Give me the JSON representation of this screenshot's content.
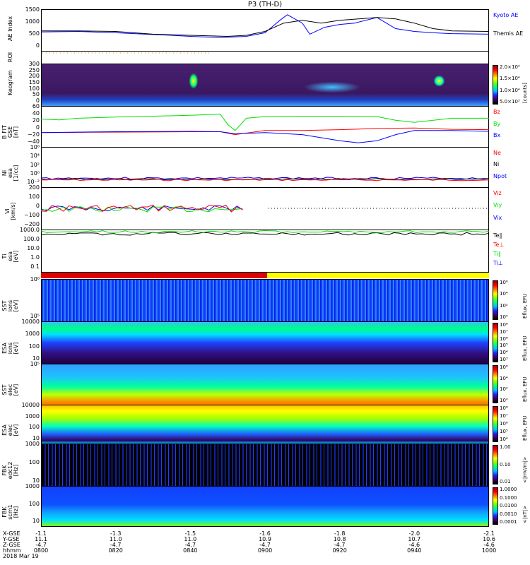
{
  "title": "P3 (TH-D)",
  "date": "2018 Mar 19",
  "colors": {
    "red": "#ff0000",
    "green": "#00e000",
    "blue": "#0000ff",
    "black": "#000000",
    "yellow": "#ffff00"
  },
  "chart_data": [
    {
      "type": "line",
      "id": "ae",
      "ylabel": "AE Index",
      "ylim": [
        0,
        1500
      ],
      "yticks": [
        "1500",
        "1000",
        "500",
        "0"
      ],
      "series": [
        {
          "name": "Kyoto AE",
          "color": "#0000ff",
          "x": [
            0,
            10,
            20,
            28,
            35,
            40,
            48,
            55,
            60,
            64,
            66,
            70,
            72,
            76,
            80,
            84,
            90,
            95,
            100,
            105,
            110,
            120
          ],
          "y": [
            680,
            700,
            650,
            600,
            560,
            520,
            480,
            520,
            650,
            1100,
            1300,
            1000,
            600,
            850,
            950,
            1000,
            1200,
            800,
            700,
            650,
            620,
            600
          ]
        },
        {
          "name": "Themis AE",
          "color": "#000000",
          "x": [
            0,
            10,
            20,
            30,
            40,
            50,
            55,
            60,
            65,
            70,
            75,
            80,
            85,
            90,
            95,
            100,
            105,
            110,
            120
          ],
          "y": [
            720,
            720,
            700,
            600,
            560,
            520,
            560,
            700,
            1000,
            1100,
            1000,
            1100,
            1150,
            1200,
            1150,
            1000,
            800,
            720,
            700
          ]
        }
      ]
    },
    {
      "type": "line",
      "id": "roi",
      "ylabel": "ROI",
      "yticks": []
    },
    {
      "type": "heatmap",
      "id": "keo",
      "ylabel": "Keogram",
      "yticks": [
        "300",
        "250",
        "200",
        "150",
        "100",
        "50",
        "0"
      ],
      "colorbar": {
        "label": "[counts]",
        "ticks": [
          "2.0×10⁴",
          "1.5×10⁴",
          "1.0×10⁴",
          "5.0×10³"
        ]
      }
    },
    {
      "type": "line",
      "id": "b",
      "ylabel": "B FIT\nGSE\n[nT]",
      "ylim": [
        -40,
        60
      ],
      "yticks": [
        "60",
        "40",
        "20",
        "0",
        "−20",
        "−40"
      ],
      "series": [
        {
          "name": "Bz",
          "color": "#ff0000",
          "x": [
            0,
            20,
            40,
            48,
            52,
            60,
            70,
            80,
            90,
            100,
            110,
            120
          ],
          "y": [
            -5,
            -4,
            -3,
            -3,
            -10,
            0,
            0,
            2,
            5,
            6,
            3,
            2
          ]
        },
        {
          "name": "By",
          "color": "#00e000",
          "x": [
            0,
            5,
            10,
            20,
            30,
            40,
            48,
            50,
            52,
            55,
            60,
            70,
            80,
            90,
            95,
            100,
            110,
            120
          ],
          "y": [
            28,
            26,
            30,
            33,
            35,
            37,
            40,
            15,
            0,
            30,
            34,
            35,
            35,
            34,
            25,
            20,
            30,
            30
          ]
        },
        {
          "name": "Bx",
          "color": "#0000ff",
          "x": [
            0,
            20,
            40,
            48,
            52,
            60,
            70,
            80,
            85,
            90,
            95,
            100,
            110,
            120
          ],
          "y": [
            -5,
            -3,
            -2,
            -3,
            -8,
            -5,
            -10,
            -25,
            -30,
            -25,
            -10,
            0,
            0,
            -2
          ]
        }
      ]
    },
    {
      "type": "line",
      "id": "n",
      "ylabel": "Ni\nesa\n[1/cc]",
      "yticks": [
        "10⁶",
        "10⁴",
        "10²",
        "10⁰",
        "10⁻²"
      ],
      "series": [
        {
          "name": "Ne",
          "color": "#ff0000"
        },
        {
          "name": "Ni",
          "color": "#000000"
        },
        {
          "name": "Npot",
          "color": "#0000ff"
        }
      ]
    },
    {
      "type": "line",
      "id": "v",
      "ylabel": "Vi\n[km/s]",
      "ylim": [
        -250,
        250
      ],
      "yticks": [
        "200",
        "100",
        "0",
        "−100",
        "−200"
      ],
      "series": [
        {
          "name": "Viz",
          "color": "#ff0000"
        },
        {
          "name": "Viy",
          "color": "#00e000"
        },
        {
          "name": "Vix",
          "color": "#0000ff"
        }
      ]
    },
    {
      "type": "line",
      "id": "t",
      "ylabel": "Ti\nesa\n[eV]",
      "yticks": [
        "1000.0",
        "100.0",
        "10.0",
        "1.0",
        "0.1"
      ],
      "series": [
        {
          "name": "Te∥",
          "color": "#000000"
        },
        {
          "name": "Te⊥",
          "color": "#ff0000"
        },
        {
          "name": "Ti∥",
          "color": "#00e000"
        },
        {
          "name": "Ti⊥",
          "color": "#0000ff"
        }
      ]
    },
    {
      "type": "heatmap",
      "id": "sst_i",
      "ylabel": "SST\nions\n[eV]",
      "yticks": [
        "10⁶",
        "10⁵"
      ],
      "colorbar": {
        "label": "Eflux, EFU",
        "ticks": [
          "10⁶",
          "10⁴",
          "10²",
          "10⁰"
        ]
      }
    },
    {
      "type": "heatmap",
      "id": "esa_i",
      "ylabel": "ESA\nions\n[eV]",
      "yticks": [
        "10000",
        "1000",
        "100",
        "10"
      ],
      "colorbar": {
        "label": "Eflux, EFU",
        "ticks": [
          "10⁸",
          "10⁷",
          "10⁶",
          "10⁵",
          "10⁴",
          "10³"
        ]
      }
    },
    {
      "type": "heatmap",
      "id": "sst_e",
      "ylabel": "SST\nelec\n[eV]",
      "yticks": [
        "10⁵"
      ],
      "colorbar": {
        "label": "Eflux, EFU",
        "ticks": [
          "10⁶",
          "10⁴",
          "10²",
          "10⁰"
        ]
      }
    },
    {
      "type": "heatmap",
      "id": "esa_e",
      "ylabel": "ESA\nelec\n[eV]",
      "yticks": [
        "10000",
        "1000",
        "100",
        "10"
      ],
      "colorbar": {
        "label": "Eflux, EFU",
        "ticks": [
          "10⁸",
          "10⁷",
          "10⁶",
          "10⁵",
          "10⁴"
        ]
      }
    },
    {
      "type": "heatmap",
      "id": "fbk1",
      "ylabel": "FBK\nedc12\n[Hz]",
      "yticks": [
        "1000",
        "100",
        "10"
      ],
      "colorbar": {
        "label": "<|mV/m|>",
        "ticks": [
          "1.00",
          "0.10",
          "0.01"
        ]
      }
    },
    {
      "type": "heatmap",
      "id": "fbk2",
      "ylabel": "FBK\nscm1\n[Hz]",
      "yticks": [
        "1000",
        "100",
        "10"
      ],
      "colorbar": {
        "label": "<|nT|>",
        "ticks": [
          "1.0000",
          "0.1000",
          "0.0100",
          "0.0010",
          "0.0001"
        ]
      }
    }
  ],
  "xaxis": {
    "row_labels": [
      "X-GSE",
      "Y-GSE",
      "Z-GSE",
      "hhmm"
    ],
    "ticks": [
      {
        "x": "-1.1",
        "y": "11.1",
        "z": "-4.7",
        "t": "0800"
      },
      {
        "x": "-1.3",
        "y": "11.0",
        "z": "-4.7",
        "t": "0820"
      },
      {
        "x": "-1.5",
        "y": "11.0",
        "z": "-4.7",
        "t": "0840"
      },
      {
        "x": "-1.6",
        "y": "10.9",
        "z": "-4.7",
        "t": "0900"
      },
      {
        "x": "-1.8",
        "y": "10.8",
        "z": "-4.7",
        "t": "0920"
      },
      {
        "x": "-2.0",
        "y": "10.7",
        "z": "-4.6",
        "t": "0940"
      },
      {
        "x": "-2.1",
        "y": "10.6",
        "z": "-4.6",
        "t": "1000"
      }
    ]
  }
}
